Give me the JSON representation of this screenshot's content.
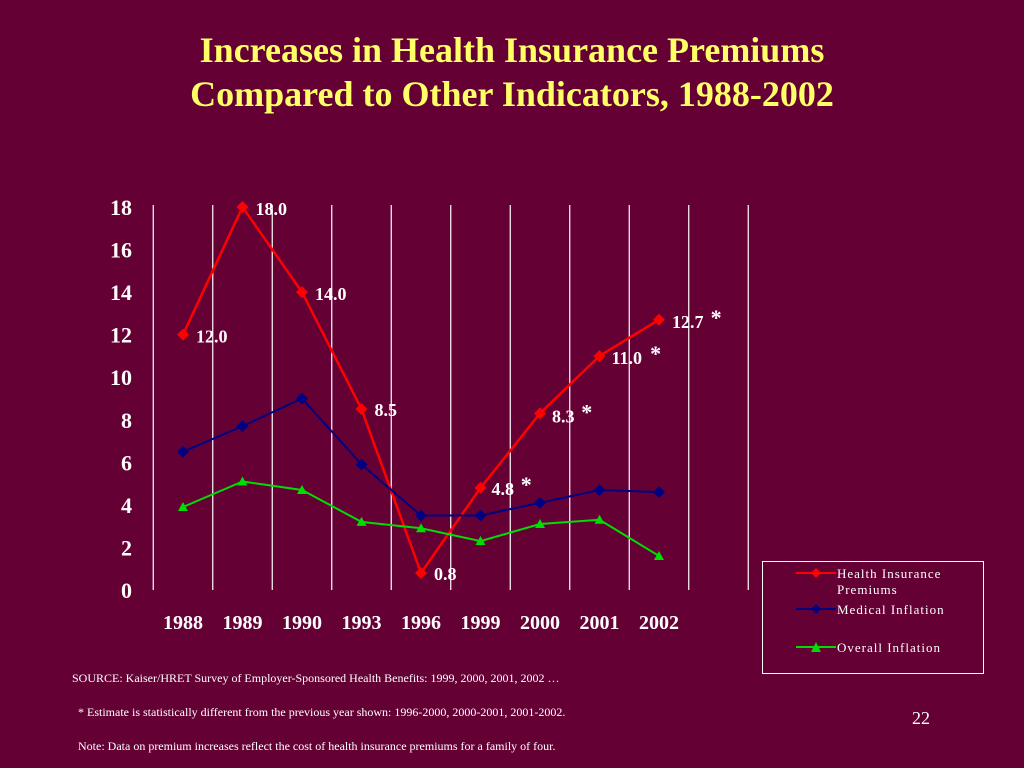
{
  "title_line1": "Increases in Health Insurance Premiums",
  "title_line2": "Compared to Other Indicators, 1988-2002",
  "chart_data": {
    "type": "line",
    "categories": [
      "1988",
      "1989",
      "1990",
      "1993",
      "1996",
      "1999",
      "2000",
      "2001",
      "2002"
    ],
    "ylim": [
      0,
      18
    ],
    "yticks": [
      "0",
      "2",
      "4",
      "6",
      "8",
      "10",
      "12",
      "14",
      "16",
      "18"
    ],
    "grid": "vertical lines at categories",
    "legend_position": "bottom-right",
    "series": [
      {
        "name": "Health Insurance Premiums",
        "color": "#FF0000",
        "marker": "diamond",
        "values": [
          12.0,
          18.0,
          14.0,
          8.5,
          0.8,
          4.8,
          8.3,
          11.0,
          12.7
        ],
        "labels": [
          "12.0",
          "18.0",
          "14.0",
          "8.5",
          "0.8",
          "4.8",
          "8.3",
          "11.0",
          "12.7"
        ],
        "starred": [
          false,
          false,
          false,
          false,
          false,
          true,
          true,
          true,
          true
        ]
      },
      {
        "name": "Medical Inflation",
        "color": "#000080",
        "marker": "diamond",
        "values": [
          6.5,
          7.7,
          9.0,
          5.9,
          3.5,
          3.5,
          4.1,
          4.7,
          4.6
        ]
      },
      {
        "name": "Overall Inflation",
        "color": "#00DD00",
        "marker": "triangle",
        "values": [
          3.9,
          5.1,
          4.7,
          3.2,
          2.9,
          2.3,
          3.1,
          3.3,
          1.6
        ]
      }
    ]
  },
  "star_symbol": "*",
  "legend": {
    "item1": "Health Insurance Premiums",
    "item2": "Medical Inflation",
    "item3": "Overall Inflation"
  },
  "footnotes": {
    "source": "SOURCE:  Kaiser/HRET Survey of Employer-Sponsored Health Benefits: 1999, 2000, 2001, 2002 …",
    "estimate": "* Estimate is statistically different from the previous year shown: 1996-2000, 2000-2001, 2001-2002.",
    "note": "Note: Data on premium increases reflect the cost of health insurance premiums for a family of four."
  },
  "page_number": "22"
}
